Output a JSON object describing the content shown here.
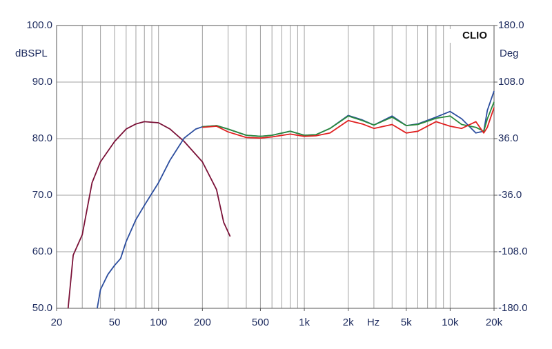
{
  "chart_data": {
    "type": "line",
    "annotation": "CLIO",
    "ylabel": "dBSPL",
    "y2label": "Deg",
    "xlabel": "Hz",
    "xscale": "log",
    "grid": true,
    "xlim": [
      20,
      20000
    ],
    "ylim": [
      50,
      100
    ],
    "y2lim": [
      -180,
      180
    ],
    "xticks": [
      20,
      50,
      100,
      200,
      500,
      {
        "value": 1000,
        "label": "1k"
      },
      {
        "value": 2000,
        "label": "2k"
      },
      {
        "value": 5000,
        "label": "5k"
      },
      {
        "value": 10000,
        "label": "10k"
      },
      {
        "value": 20000,
        "label": "20k"
      }
    ],
    "xgrid": [
      20,
      30,
      40,
      50,
      60,
      70,
      80,
      90,
      100,
      200,
      300,
      400,
      500,
      600,
      700,
      800,
      900,
      1000,
      2000,
      3000,
      4000,
      5000,
      6000,
      7000,
      8000,
      9000,
      10000,
      20000
    ],
    "yticks": [
      {
        "value": 50,
        "label": "50.0"
      },
      {
        "value": 60,
        "label": "60.0"
      },
      {
        "value": 70,
        "label": "70.0"
      },
      {
        "value": 80,
        "label": "80.0"
      },
      {
        "value": 90,
        "label": "90.0"
      },
      {
        "value": 100,
        "label": "100.0"
      }
    ],
    "y2ticks": [
      {
        "value": -180,
        "label": "-180.0"
      },
      {
        "value": -108,
        "label": "-108.0"
      },
      {
        "value": -36,
        "label": "-36.0"
      },
      {
        "value": 36,
        "label": "36.0"
      },
      {
        "value": 108,
        "label": "108.0"
      },
      {
        "value": 180,
        "label": "180.0"
      }
    ],
    "series": [
      {
        "color": "#7b1238",
        "x": [
          24,
          26,
          30,
          35,
          40,
          50,
          60,
          70,
          80,
          100,
          120,
          150,
          200,
          250,
          280,
          310
        ],
        "values": [
          50,
          59.4,
          63,
          72.2,
          75.9,
          79.5,
          81.7,
          82.6,
          83.0,
          82.8,
          81.7,
          79.5,
          75.9,
          71,
          65.2,
          62.7
        ]
      },
      {
        "color": "#2b4d9e",
        "x": [
          38,
          40,
          45,
          50,
          55,
          60,
          70,
          80,
          100,
          120,
          150,
          180,
          200,
          250,
          300,
          400,
          500,
          600,
          800,
          1000,
          1200,
          1500,
          2000,
          2500,
          3000,
          4000,
          5000,
          6000,
          8000,
          10000,
          12000,
          15000,
          17000,
          18000,
          20000
        ],
        "values": [
          50,
          53.3,
          56,
          57.6,
          58.8,
          61.8,
          65.7,
          68.2,
          72.2,
          76.2,
          80.1,
          81.7,
          82.1,
          82.3,
          81.7,
          80.6,
          80.4,
          80.6,
          81.3,
          80.6,
          80.7,
          81.8,
          84.1,
          83.3,
          82.4,
          84.0,
          82.3,
          82.6,
          83.8,
          84.8,
          83.5,
          81.0,
          81.3,
          85,
          88.4
        ]
      },
      {
        "color": "#2a8a3c",
        "x": [
          200,
          250,
          300,
          400,
          500,
          600,
          800,
          1000,
          1200,
          1500,
          2000,
          2500,
          3000,
          4000,
          5000,
          6000,
          8000,
          10000,
          12000,
          15000,
          17000,
          18000,
          20000
        ],
        "values": [
          82.1,
          82.3,
          81.7,
          80.6,
          80.4,
          80.6,
          81.3,
          80.6,
          80.7,
          81.8,
          84.0,
          83.2,
          82.4,
          83.8,
          82.3,
          82.5,
          83.6,
          84.0,
          82.5,
          82.0,
          81.3,
          83.5,
          86.5
        ]
      },
      {
        "color": "#e02020",
        "x": [
          200,
          250,
          300,
          400,
          500,
          600,
          800,
          1000,
          1200,
          1500,
          2000,
          2500,
          3000,
          4000,
          5000,
          6000,
          8000,
          10000,
          12000,
          15000,
          17000,
          18000,
          20000
        ],
        "values": [
          82.0,
          82.2,
          81.2,
          80.2,
          80.1,
          80.3,
          80.8,
          80.4,
          80.5,
          81.0,
          83.2,
          82.6,
          81.8,
          82.5,
          81.0,
          81.3,
          83.0,
          82.2,
          81.8,
          83.0,
          81.0,
          82.0,
          85.5
        ]
      }
    ]
  }
}
